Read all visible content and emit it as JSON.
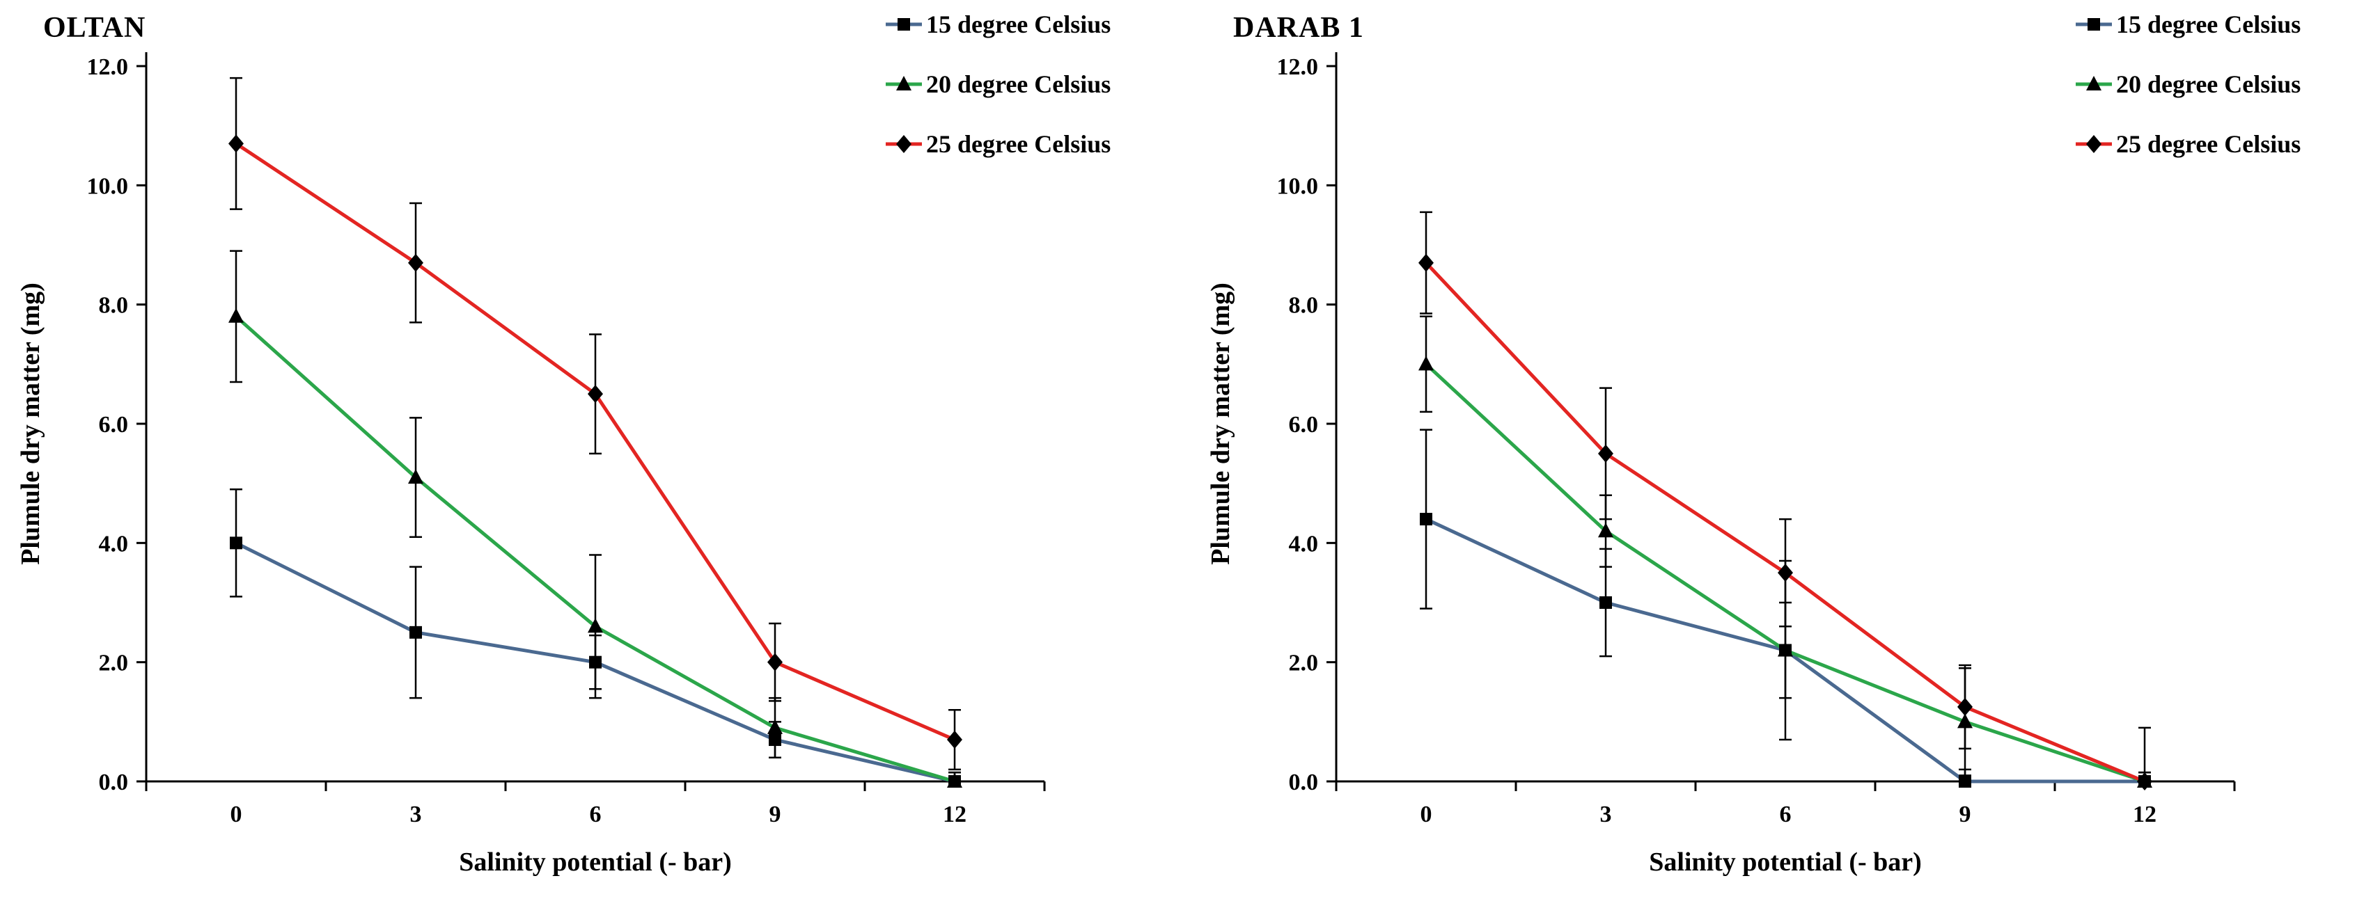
{
  "figure": {
    "background": "#ffffff",
    "text_color": "#000000"
  },
  "chart_data": [
    {
      "type": "line",
      "title": "OLTAN",
      "xlabel": "Salinity potential  (- bar)",
      "ylabel": "Plumule dry matter (mg)",
      "categories": [
        0,
        3,
        6,
        9,
        12
      ],
      "ylim": [
        0.0,
        12.0
      ],
      "ytick_step": 2.0,
      "ytick_labels": [
        "0.0",
        "2.0",
        "4.0",
        "6.0",
        "8.0",
        "10.0",
        "12.0"
      ],
      "grid": false,
      "legend_position": "top-right",
      "series": [
        {
          "name": "15 degree Celsius",
          "color": "#4A6990",
          "marker": "square",
          "values": [
            4.0,
            2.5,
            2.0,
            0.7,
            0.0
          ],
          "error": [
            0.9,
            1.1,
            0.45,
            0.3,
            0.15
          ]
        },
        {
          "name": "20 degree Celsius",
          "color": "#2BA64A",
          "marker": "triangle",
          "values": [
            7.8,
            5.1,
            2.6,
            0.9,
            0.0
          ],
          "error": [
            1.1,
            1.0,
            1.2,
            0.5,
            0.15
          ]
        },
        {
          "name": "25 degree Celsius",
          "color": "#E32522",
          "marker": "diamond",
          "values": [
            10.7,
            8.7,
            6.5,
            2.0,
            0.7
          ],
          "error": [
            1.1,
            1.0,
            1.0,
            0.65,
            0.5
          ]
        }
      ]
    },
    {
      "type": "line",
      "title": "DARAB 1",
      "xlabel": "Salinity potential  (- bar)",
      "ylabel": "Plumule dry matter (mg)",
      "categories": [
        0,
        3,
        6,
        9,
        12
      ],
      "ylim": [
        0.0,
        12.0
      ],
      "ytick_step": 2.0,
      "ytick_labels": [
        "0.0",
        "2.0",
        "4.0",
        "6.0",
        "8.0",
        "10.0",
        "12.0"
      ],
      "grid": false,
      "legend_position": "top-right",
      "series": [
        {
          "name": "15 degree Celsius",
          "color": "#4A6990",
          "marker": "square",
          "values": [
            4.4,
            3.0,
            2.2,
            0.0,
            0.0
          ],
          "error": [
            1.5,
            0.9,
            0.8,
            0.2,
            0.15
          ]
        },
        {
          "name": "20 degree Celsius",
          "color": "#2BA64A",
          "marker": "triangle",
          "values": [
            7.0,
            4.2,
            2.2,
            1.0,
            0.0
          ],
          "error": [
            0.8,
            0.6,
            1.5,
            0.9,
            0.15
          ]
        },
        {
          "name": "25 degree Celsius",
          "color": "#E32522",
          "marker": "diamond",
          "values": [
            8.7,
            5.5,
            3.5,
            1.25,
            0.0
          ],
          "error": [
            0.85,
            1.1,
            0.9,
            0.7,
            0.9
          ]
        }
      ]
    }
  ]
}
